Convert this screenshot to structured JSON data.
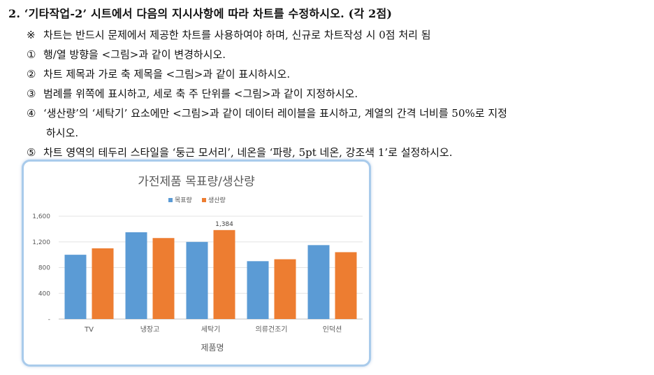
{
  "question": {
    "title": "2. ‘기타작업-2’ 시트에서 다음의 지시사항에 따라 차트를 수정하시오. (각 2점)",
    "lines": [
      {
        "mark": "※",
        "text": "차트는 반드시 문제에서 제공한 차트를 사용하여야 하며, 신규로 차트작성 시 0점 처리 됨"
      },
      {
        "mark": "①",
        "text": "행/열 방향을 <그림>과 같이 변경하시오."
      },
      {
        "mark": "②",
        "text": "차트 제목과 가로 축 제목을 <그림>과 같이 표시하시오."
      },
      {
        "mark": "③",
        "text": "범례를 위쪽에 표시하고, 세로 축 주 단위를 <그림>과 같이 지정하시오."
      },
      {
        "mark": "④",
        "text": "‘생산량’의 ‘세탁기’ 요소에만 <그림>과 같이 데이터 레이블을 표시하고, 계열의 간격 너비를 50%로 지정"
      },
      {
        "mark": "",
        "text": "하시오."
      },
      {
        "mark": "⑤",
        "text": "차트 영역의 테두리 스타일을 ‘둥근 모서리’, 네온을 ‘파랑, 5pt 네온, 강조색 1’로 설정하시오."
      }
    ]
  },
  "chart_data": {
    "type": "bar",
    "title": "가전제품 목표량/생산량",
    "xlabel": "제품명",
    "ylabel": "",
    "categories": [
      "TV",
      "냉장고",
      "세탁기",
      "의류건조기",
      "인덕션"
    ],
    "series": [
      {
        "name": "목표량",
        "color": "#5b9bd5",
        "values": [
          1000,
          1350,
          1200,
          900,
          1150
        ]
      },
      {
        "name": "생산량",
        "color": "#ed7d31",
        "values": [
          1100,
          1260,
          1384,
          930,
          1040
        ]
      }
    ],
    "ylim": [
      0,
      1600
    ],
    "yticks": [
      0,
      400,
      800,
      1200,
      1600
    ],
    "ytick_labels": [
      "-",
      "400",
      "800",
      "1,200",
      "1,600"
    ],
    "data_label": {
      "series": 1,
      "category": 2,
      "text": "1,384"
    },
    "legend_position": "top",
    "gridlines": true
  }
}
